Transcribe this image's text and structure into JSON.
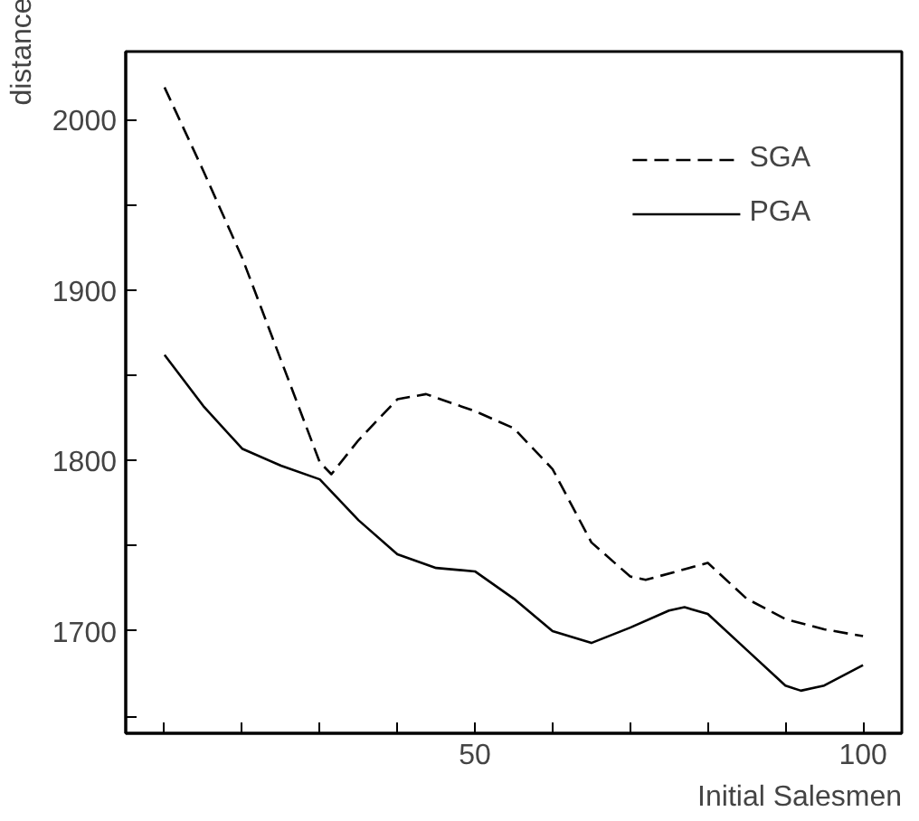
{
  "chart_data": {
    "type": "line",
    "xlabel": "Initial Salesmen",
    "ylabel": "distance",
    "xlim": [
      5,
      105
    ],
    "ylim": [
      1640,
      2040
    ],
    "xticks": [
      {
        "value": 10,
        "label": null
      },
      {
        "value": 20,
        "label": null
      },
      {
        "value": 30,
        "label": null
      },
      {
        "value": 40,
        "label": null
      },
      50,
      {
        "value": 60,
        "label": null
      },
      {
        "value": 70,
        "label": null
      },
      {
        "value": 80,
        "label": null
      },
      {
        "value": 90,
        "label": null
      },
      100
    ],
    "yticks": [
      {
        "value": 1650,
        "label": null
      },
      1700,
      {
        "value": 1750,
        "label": null
      },
      1800,
      {
        "value": 1850,
        "label": null
      },
      1900,
      {
        "value": 1950,
        "label": null
      },
      2000
    ],
    "grid": false,
    "legend": "top right",
    "marker": "none",
    "series": [
      {
        "name": "SGA",
        "color": "#000000",
        "line_style": "dashed",
        "x": [
          10,
          15,
          20,
          25,
          30,
          31.5,
          35,
          40,
          43.7,
          50,
          55,
          60,
          65,
          70,
          72,
          80,
          85,
          90,
          95,
          100
        ],
        "values": [
          2019,
          1970,
          1919,
          1859,
          1799,
          1792,
          1812,
          1836,
          1839,
          1829,
          1819,
          1795,
          1752,
          1732,
          1730,
          1740,
          1719,
          1707,
          1701,
          1697
        ]
      },
      {
        "name": "PGA",
        "color": "#000000",
        "line_style": "solid",
        "x": [
          10,
          15,
          20,
          25,
          30,
          35,
          40,
          45,
          50,
          55,
          60,
          65,
          70,
          75,
          77,
          80,
          85,
          90,
          92,
          95,
          100
        ],
        "values": [
          1862,
          1832,
          1807,
          1797,
          1789,
          1765,
          1745,
          1737,
          1735,
          1719,
          1700,
          1693,
          1702,
          1712,
          1714,
          1710,
          1689,
          1668,
          1665,
          1668,
          1680
        ]
      }
    ]
  }
}
